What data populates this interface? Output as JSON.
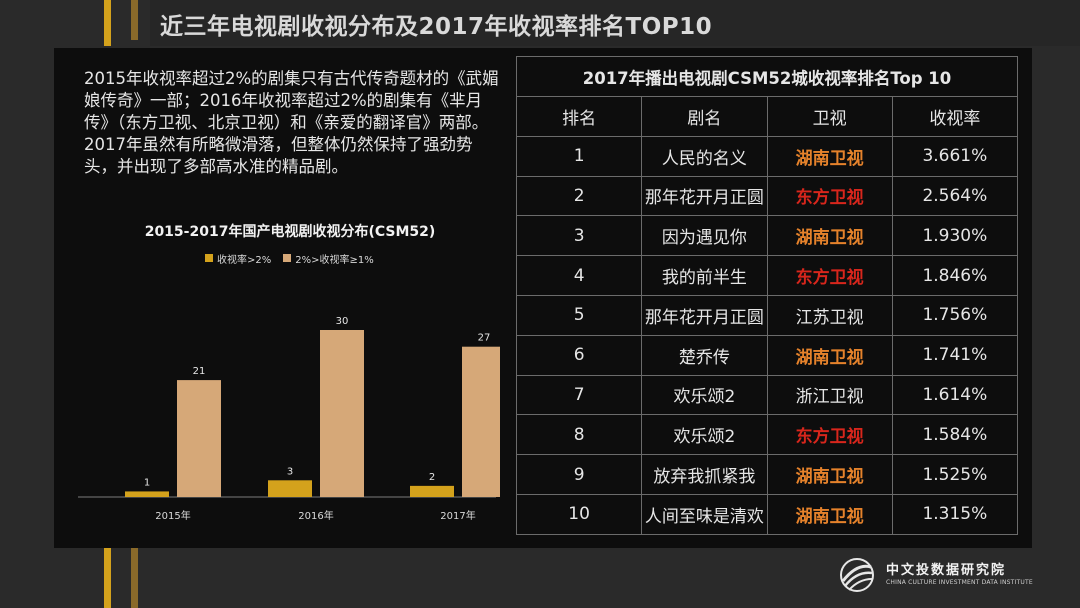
{
  "title": "近三年电视剧收视分布及2017年收视率排名TOP10",
  "intro_text": "2015年收视率超过2%的剧集只有古代传奇题材的《武媚娘传奇》一部；2016年收视率超过2%的剧集有《芈月传》（东方卫视、北京卫视）和《亲爱的翻译官》两部。2017年虽然有所略微滑落，但整体仍然保持了强劲势头，并出现了多部高水准的精品剧。",
  "colors": {
    "accent": "#d4a21c",
    "series_high": "#d4a21c",
    "series_mid": "#d6a878",
    "channel_hunan": "#e5822b",
    "channel_dongfang": "#d8261c"
  },
  "chart_data": {
    "type": "bar",
    "title": "2015-2017年国产电视剧收视分布(CSM52)",
    "categories": [
      "2015年",
      "2016年",
      "2017年"
    ],
    "series": [
      {
        "name": "收视率>2%",
        "values": [
          1,
          3,
          2
        ]
      },
      {
        "name": "2%>收视率≥1%",
        "values": [
          21,
          30,
          27
        ]
      }
    ],
    "ylim": [
      0,
      30
    ],
    "grid": false,
    "legend": "top"
  },
  "table": {
    "caption": "2017年播出电视剧CSM52城收视率排名Top 10",
    "headers": [
      "排名",
      "剧名",
      "卫视",
      "收视率"
    ],
    "rows": [
      {
        "rank": "1",
        "name": "人民的名义",
        "channel": "湖南卫视",
        "channel_style": "hunan",
        "rating": "3.661%"
      },
      {
        "rank": "2",
        "name": "那年花开月正圆",
        "channel": "东方卫视",
        "channel_style": "dongfang",
        "rating": "2.564%"
      },
      {
        "rank": "3",
        "name": "因为遇见你",
        "channel": "湖南卫视",
        "channel_style": "hunan",
        "rating": "1.930%"
      },
      {
        "rank": "4",
        "name": "我的前半生",
        "channel": "东方卫视",
        "channel_style": "dongfang",
        "rating": "1.846%"
      },
      {
        "rank": "5",
        "name": "那年花开月正圆",
        "channel": "江苏卫视",
        "channel_style": "plain",
        "rating": "1.756%"
      },
      {
        "rank": "6",
        "name": "楚乔传",
        "channel": "湖南卫视",
        "channel_style": "hunan",
        "rating": "1.741%"
      },
      {
        "rank": "7",
        "name": "欢乐颂2",
        "channel": "浙江卫视",
        "channel_style": "plain",
        "rating": "1.614%"
      },
      {
        "rank": "8",
        "name": "欢乐颂2",
        "channel": "东方卫视",
        "channel_style": "dongfang",
        "rating": "1.584%"
      },
      {
        "rank": "9",
        "name": "放弃我抓紧我",
        "channel": "湖南卫视",
        "channel_style": "hunan",
        "rating": "1.525%"
      },
      {
        "rank": "10",
        "name": "人间至味是清欢",
        "channel": "湖南卫视",
        "channel_style": "hunan",
        "rating": "1.315%"
      }
    ]
  },
  "logo": {
    "name_cn": "中文投数据研究院",
    "name_en": "CHINA CULTURE INVESTMENT DATA INSTITUTE",
    "icon": "globe-swoosh-icon"
  }
}
